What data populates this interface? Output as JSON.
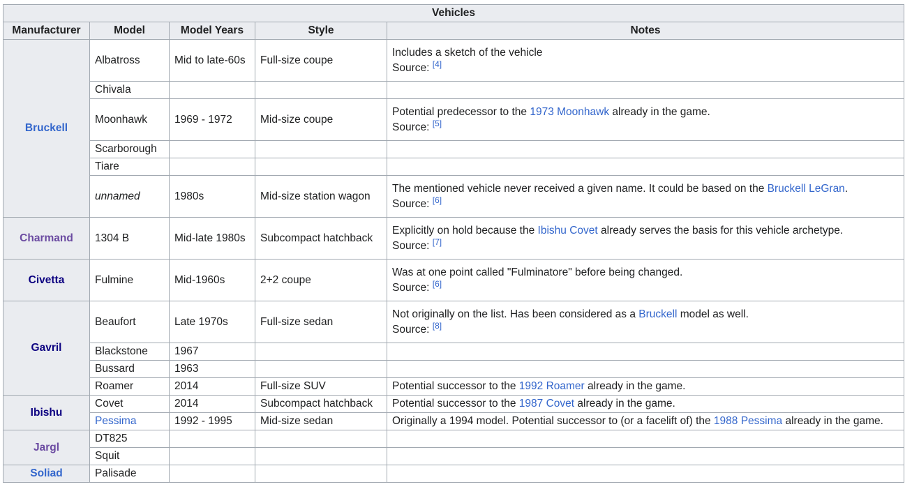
{
  "title": "Vehicles",
  "headers": [
    "Manufacturer",
    "Model",
    "Model Years",
    "Style",
    "Notes"
  ],
  "source_label": "Source:",
  "rows": {
    "bruckell": {
      "name": "Bruckell",
      "albatross": {
        "model": "Albatross",
        "years": "Mid to late-60s",
        "style": "Full-size coupe",
        "note": "Includes a sketch of the vehicle",
        "ref": "[4]"
      },
      "chivala": {
        "model": "Chivala"
      },
      "moonhawk": {
        "model": "Moonhawk",
        "years": "1969 - 1972",
        "style": "Mid-size coupe",
        "note_a": "Potential predecessor to the ",
        "note_link": "1973 Moonhawk",
        "note_b": " already in the game.",
        "ref": "[5]"
      },
      "scarborough": {
        "model": "Scarborough"
      },
      "tiare": {
        "model": "Tiare"
      },
      "unnamed": {
        "model": "unnamed",
        "years": "1980s",
        "style": "Mid-size station wagon",
        "note_a": "The mentioned vehicle never received a given name. It could be based on the ",
        "note_link": "Bruckell LeGran",
        "note_b": ".",
        "ref": "[6]"
      }
    },
    "charmand": {
      "name": "Charmand",
      "model": "1304 B",
      "years": "Mid-late 1980s",
      "style": "Subcompact hatchback",
      "note_a": "Explicitly on hold because the ",
      "note_link": "Ibishu Covet",
      "note_b": " already serves the basis for this vehicle archetype.",
      "ref": "[7]"
    },
    "civetta": {
      "name": "Civetta",
      "model": "Fulmine",
      "years": "Mid-1960s",
      "style": "2+2 coupe",
      "note": "Was at one point called \"Fulminatore\" before being changed.",
      "ref": "[6]"
    },
    "gavril": {
      "name": "Gavril",
      "beaufort": {
        "model": "Beaufort",
        "years": "Late 1970s",
        "style": "Full-size sedan",
        "note_a": "Not originally on the list. Has been considered as a ",
        "note_link": "Bruckell",
        "note_b": " model as well.",
        "ref": "[8]"
      },
      "blackstone": {
        "model": "Blackstone",
        "years": "1967"
      },
      "bussard": {
        "model": "Bussard",
        "years": "1963"
      },
      "roamer": {
        "model": "Roamer",
        "years": "2014",
        "style": "Full-size SUV",
        "note_a": "Potential successor to the ",
        "note_link": "1992 Roamer",
        "note_b": " already in the game."
      }
    },
    "ibishu": {
      "name": "Ibishu",
      "covet": {
        "model": "Covet",
        "years": "2014",
        "style": "Subcompact hatchback",
        "note_a": "Potential successor to the ",
        "note_link": "1987 Covet",
        "note_b": " already in the game."
      },
      "pessima": {
        "model": "Pessima",
        "years": "1992 - 1995",
        "style": "Mid-size sedan",
        "note_a": "Originally a 1994 model. Potential successor to (or a facelift of) the ",
        "note_link": "1988 Pessima",
        "note_b": " already in the game."
      }
    },
    "jargl": {
      "name": "Jargl",
      "dt825": {
        "model": "DT825"
      },
      "squit": {
        "model": "Squit"
      }
    },
    "soliad": {
      "name": "Soliad",
      "palisade": {
        "model": "Palisade"
      }
    }
  }
}
